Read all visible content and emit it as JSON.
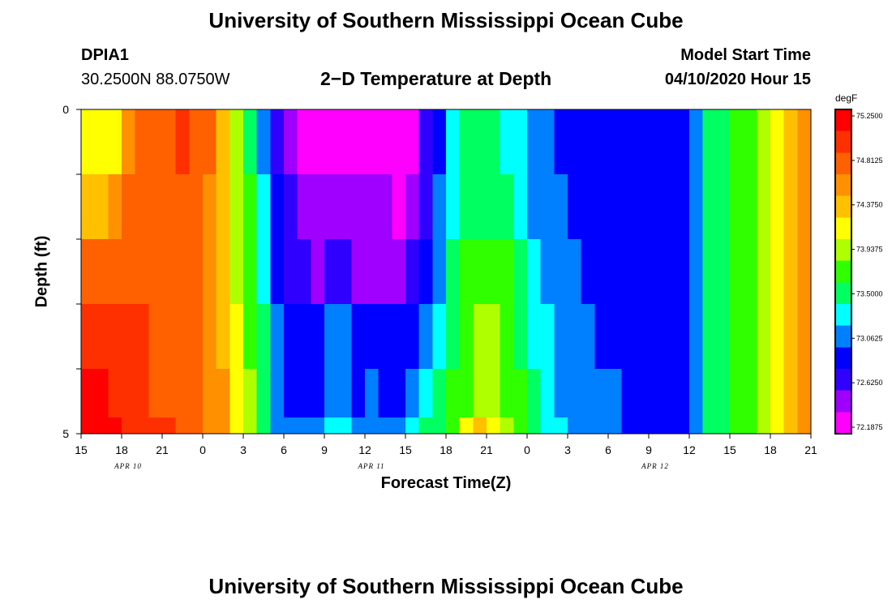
{
  "header": {
    "title": "University of Southern Mississippi Ocean Cube",
    "station": "DPIA1",
    "location": "30.2500N 88.0750W",
    "subtitle": "2−D Temperature at Depth",
    "model_start_label": "Model Start Time",
    "model_start_value": "04/10/2020 Hour 15"
  },
  "footer": {
    "title": "University of Southern Mississippi Ocean Cube"
  },
  "chart_data": {
    "type": "heatmap",
    "title": "2−D Temperature at Depth",
    "xlabel": "Forecast Time(Z)",
    "ylabel": "Depth (ft)",
    "x_tick_labels": [
      "15",
      "18",
      "21",
      "0",
      "3",
      "6",
      "9",
      "12",
      "15",
      "18",
      "21",
      "0",
      "3",
      "6",
      "9",
      "12",
      "15",
      "18",
      "21"
    ],
    "x_date_labels": [
      "APR 10",
      "APR 11",
      "APR 12"
    ],
    "x_date_label_tick_index": [
      1,
      7,
      14
    ],
    "y_tick_labels": [
      "0",
      "5"
    ],
    "ylim": [
      0,
      5
    ],
    "x_start": "04/10/2020 Hour 15",
    "x_step_hours": 1,
    "colorbar": {
      "unit": "degF",
      "tick_labels": [
        "75.2500",
        "74.8125",
        "74.3750",
        "73.9375",
        "73.5000",
        "73.0625",
        "72.6250",
        "72.1875"
      ],
      "range": [
        72.1,
        75.3
      ],
      "colors": [
        "#ff00ff",
        "#a000ff",
        "#3000ff",
        "#0000ff",
        "#0080ff",
        "#00ffff",
        "#00ff60",
        "#30ff00",
        "#b0ff00",
        "#ffff00",
        "#ffc000",
        "#ff9000",
        "#ff6000",
        "#ff3000",
        "#ff0000"
      ]
    },
    "depth_layers": [
      0.25,
      1.25,
      2.25,
      3.25,
      4.25,
      5.0
    ],
    "temperature_keyframes": [
      {
        "hour": 0,
        "values": [
          74.1,
          74.3,
          74.8,
          74.9,
          75.1,
          75.2
        ]
      },
      {
        "hour": 2,
        "values": [
          74.0,
          74.4,
          74.8,
          74.9,
          75.1,
          75.2
        ]
      },
      {
        "hour": 4,
        "values": [
          74.7,
          74.8,
          74.8,
          74.9,
          74.9,
          75.0
        ]
      },
      {
        "hour": 8,
        "values": [
          74.9,
          74.8,
          74.8,
          74.8,
          74.8,
          74.8
        ]
      },
      {
        "hour": 10,
        "values": [
          74.6,
          74.5,
          74.5,
          74.5,
          74.6,
          74.6
        ]
      },
      {
        "hour": 11,
        "values": [
          74.1,
          74.2,
          74.2,
          74.3,
          74.4,
          74.4
        ]
      },
      {
        "hour": 12,
        "values": [
          73.7,
          73.8,
          73.8,
          73.9,
          74.0,
          74.0
        ]
      },
      {
        "hour": 13,
        "values": [
          73.3,
          73.4,
          73.4,
          73.6,
          73.7,
          73.7
        ]
      },
      {
        "hour": 14,
        "values": [
          72.8,
          73.0,
          73.0,
          73.2,
          73.3,
          73.3
        ]
      },
      {
        "hour": 15,
        "values": [
          72.5,
          72.7,
          72.8,
          72.9,
          73.0,
          73.0
        ]
      },
      {
        "hour": 16,
        "values": [
          72.3,
          72.5,
          72.6,
          72.8,
          72.9,
          72.95
        ]
      },
      {
        "hour": 18,
        "values": [
          72.2,
          72.4,
          72.5,
          72.8,
          72.9,
          73.2
        ]
      },
      {
        "hour": 19,
        "values": [
          72.2,
          72.4,
          72.7,
          73.2,
          73.2,
          73.4
        ]
      },
      {
        "hour": 20,
        "values": [
          72.3,
          72.5,
          72.5,
          72.9,
          72.9,
          73.0
        ]
      },
      {
        "hour": 21,
        "values": [
          72.3,
          72.4,
          72.5,
          72.8,
          73.0,
          73.1
        ]
      },
      {
        "hour": 23,
        "values": [
          72.2,
          72.3,
          72.5,
          72.8,
          72.9,
          73.0
        ]
      },
      {
        "hour": 24,
        "values": [
          72.15,
          72.3,
          72.5,
          72.7,
          72.9,
          73.05
        ]
      },
      {
        "hour": 25,
        "values": [
          72.3,
          72.4,
          72.6,
          72.9,
          73.1,
          73.3
        ]
      },
      {
        "hour": 26,
        "values": [
          72.8,
          72.9,
          73.0,
          73.1,
          73.3,
          73.5
        ]
      },
      {
        "hour": 27,
        "values": [
          73.1,
          73.3,
          73.3,
          73.4,
          73.5,
          73.6
        ]
      },
      {
        "hour": 28,
        "values": [
          73.4,
          73.4,
          73.5,
          73.6,
          73.7,
          73.9
        ]
      },
      {
        "hour": 29,
        "values": [
          73.45,
          73.5,
          73.7,
          73.8,
          73.9,
          74.2
        ]
      },
      {
        "hour": 30,
        "values": [
          73.45,
          73.5,
          73.7,
          73.9,
          74.0,
          74.3
        ]
      },
      {
        "hour": 31,
        "values": [
          73.4,
          73.5,
          73.6,
          73.8,
          73.9,
          74.1
        ]
      },
      {
        "hour": 32,
        "values": [
          73.3,
          73.4,
          73.6,
          73.6,
          73.7,
          73.8
        ]
      },
      {
        "hour": 33,
        "values": [
          73.1,
          73.2,
          73.3,
          73.4,
          73.5,
          73.6
        ]
      },
      {
        "hour": 34,
        "values": [
          73.0,
          73.1,
          73.2,
          73.3,
          73.3,
          73.4
        ]
      },
      {
        "hour": 36,
        "values": [
          72.9,
          72.95,
          73.0,
          73.1,
          73.1,
          73.2
        ]
      },
      {
        "hour": 38,
        "values": [
          72.85,
          72.9,
          72.9,
          72.95,
          73.0,
          73.0
        ]
      },
      {
        "hour": 42,
        "values": [
          72.8,
          72.85,
          72.85,
          72.9,
          72.9,
          72.9
        ]
      },
      {
        "hour": 45,
        "values": [
          72.95,
          72.95,
          72.95,
          72.95,
          72.95,
          72.95
        ]
      },
      {
        "hour": 46,
        "values": [
          73.3,
          73.3,
          73.3,
          73.3,
          73.3,
          73.3
        ]
      },
      {
        "hour": 47,
        "values": [
          73.5,
          73.5,
          73.5,
          73.5,
          73.5,
          73.5
        ]
      },
      {
        "hour": 49,
        "values": [
          73.7,
          73.7,
          73.7,
          73.7,
          73.7,
          73.7
        ]
      },
      {
        "hour": 51,
        "values": [
          74.0,
          74.0,
          74.0,
          74.0,
          74.0,
          74.0
        ]
      },
      {
        "hour": 53,
        "values": [
          74.4,
          74.4,
          74.4,
          74.4,
          74.4,
          74.4
        ]
      },
      {
        "hour": 54,
        "values": [
          74.6,
          74.6,
          74.6,
          74.6,
          74.6,
          74.6
        ]
      }
    ]
  }
}
